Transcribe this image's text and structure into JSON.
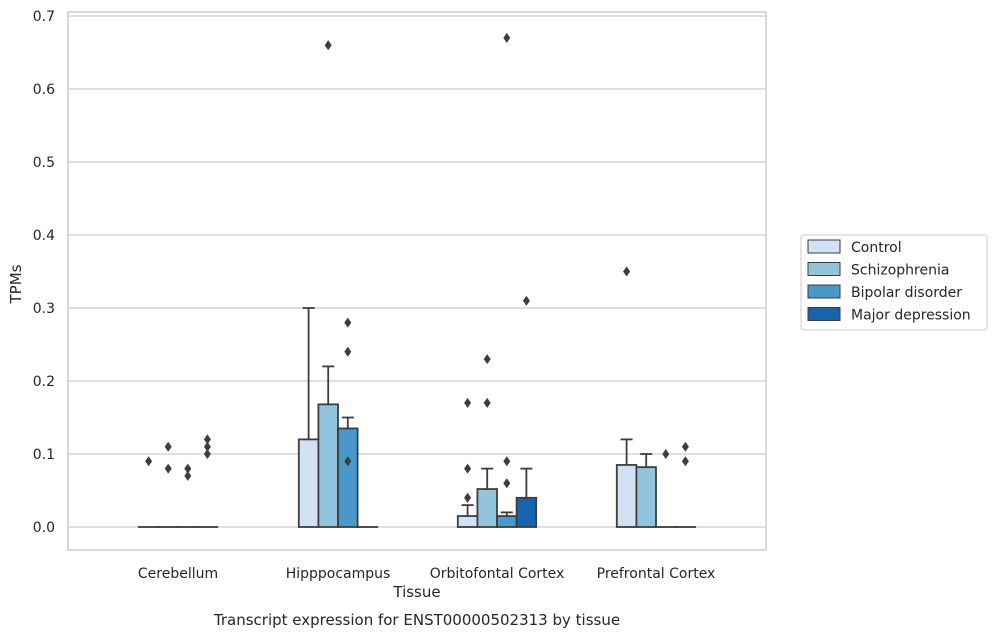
{
  "caption": "Transcript expression for ENST00000502313 by tissue",
  "chart_data": {
    "type": "bar",
    "xlabel": "Tissue",
    "ylabel": "TPMs",
    "ylim": [
      -0.032,
      0.705
    ],
    "yticks": [
      "0.0",
      "0.1",
      "0.2",
      "0.3",
      "0.4",
      "0.5",
      "0.6",
      "0.7"
    ],
    "grid": "horizontal",
    "legend_position": "right",
    "categories": [
      "Cerebellum",
      "Hipppocampus",
      "Orbitofontal Cortex",
      "Prefrontal Cortex"
    ],
    "series": [
      {
        "name": "Control",
        "color": "#cfe1f2",
        "values": [
          0.0,
          0.12,
          0.015,
          0.085
        ],
        "error_upper": [
          0.0,
          0.3,
          0.03,
          0.12
        ],
        "outliers": [
          [
            0.09
          ],
          [],
          [
            0.17,
            0.08,
            0.04
          ],
          [
            0.35
          ]
        ]
      },
      {
        "name": "Schizophrenia",
        "color": "#93c4de",
        "values": [
          0.0,
          0.168,
          0.052,
          0.082
        ],
        "error_upper": [
          0.0,
          0.22,
          0.08,
          0.1
        ],
        "outliers": [
          [
            0.11,
            0.08
          ],
          [
            0.66
          ],
          [
            0.23,
            0.17
          ],
          []
        ]
      },
      {
        "name": "Bipolar disorder",
        "color": "#4a98c9",
        "values": [
          0.0,
          0.135,
          0.015,
          0.0
        ],
        "error_upper": [
          0.0,
          0.15,
          0.02,
          0.0
        ],
        "outliers": [
          [
            0.08,
            0.07
          ],
          [
            0.28,
            0.24,
            0.09
          ],
          [
            0.67,
            0.09,
            0.06
          ],
          [
            0.1
          ]
        ]
      },
      {
        "name": "Major depression",
        "color": "#1764ab",
        "values": [
          0.0,
          0.0,
          0.04,
          0.0
        ],
        "error_upper": [
          0.0,
          0.0,
          0.08,
          0.0
        ],
        "outliers": [
          [
            0.12,
            0.11,
            0.1
          ],
          [],
          [
            0.31
          ],
          [
            0.11,
            0.09
          ]
        ]
      }
    ]
  }
}
